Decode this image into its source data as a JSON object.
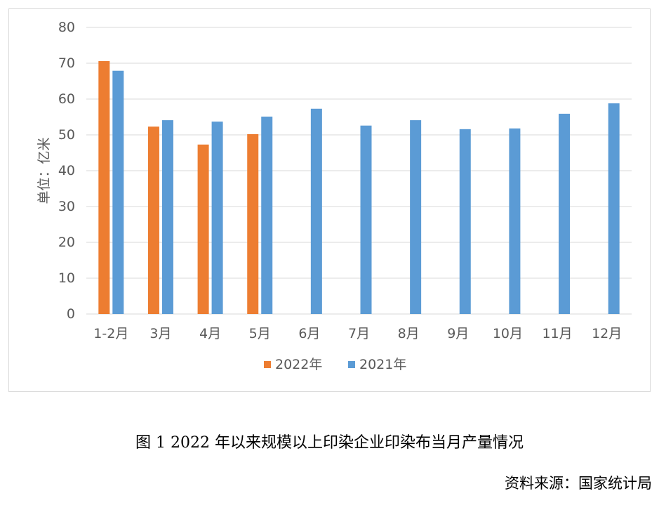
{
  "chart_data": {
    "type": "bar",
    "categories": [
      "1-2月",
      "3月",
      "4月",
      "5月",
      "6月",
      "7月",
      "8月",
      "9月",
      "10月",
      "11月",
      "12月"
    ],
    "series": [
      {
        "name": "2022年",
        "color": "#ED7D31",
        "values": [
          70.6,
          52.3,
          47.3,
          50.2,
          null,
          null,
          null,
          null,
          null,
          null,
          null
        ]
      },
      {
        "name": "2021年",
        "color": "#5B9BD5",
        "values": [
          67.9,
          54.1,
          53.7,
          55.1,
          57.3,
          52.6,
          54.1,
          51.6,
          51.8,
          55.9,
          58.8
        ]
      }
    ],
    "ylabel": "单位：亿米",
    "xlabel": "",
    "ylim": [
      0,
      80
    ],
    "yticks": [
      0,
      10,
      20,
      30,
      40,
      50,
      60,
      70,
      80
    ],
    "grid": true,
    "legend": "bottom"
  },
  "caption": "图 1 2022 年以来规模以上印染企业印染布当月产量情况",
  "source": "资料来源：国家统计局"
}
